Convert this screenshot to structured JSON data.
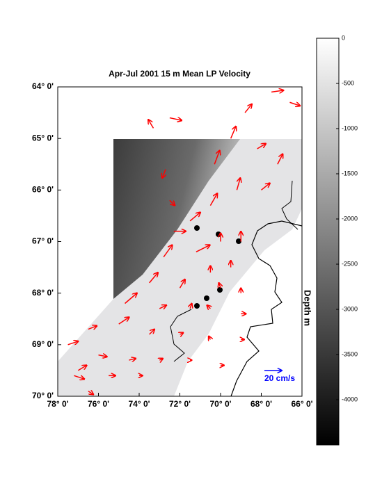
{
  "chart_data": {
    "type": "quiver",
    "title": "Apr-Jul 2001 15 m Mean LP Velocity",
    "xlim": [
      78,
      66
    ],
    "ylim": [
      64,
      70
    ],
    "xticks": [
      {
        "value": 78,
        "label": "78° 0'"
      },
      {
        "value": 76,
        "label": "76° 0'"
      },
      {
        "value": 74,
        "label": "74° 0'"
      },
      {
        "value": 72,
        "label": "72° 0'"
      },
      {
        "value": 70,
        "label": "70° 0'"
      },
      {
        "value": 68,
        "label": "68° 0'"
      },
      {
        "value": 66,
        "label": "66° 0'"
      }
    ],
    "yticks": [
      {
        "value": 64,
        "label": "64° 0'"
      },
      {
        "value": 65,
        "label": "65° 0'"
      },
      {
        "value": 66,
        "label": "66° 0'"
      },
      {
        "value": 67,
        "label": "67° 0'"
      },
      {
        "value": 68,
        "label": "68° 0'"
      },
      {
        "value": 69,
        "label": "69° 0'"
      },
      {
        "value": 70,
        "label": "70° 0'"
      }
    ],
    "color": "#ff0000",
    "x": [
      67.5,
      66.6,
      68.8,
      72.5,
      73.3,
      69.5,
      68.2,
      67.2,
      70.3,
      72.7,
      72.5,
      69.2,
      70.5,
      68.0,
      71.5,
      72.3,
      70.0,
      69.0,
      71.2,
      72.8,
      70.5,
      69.5,
      73.5,
      72.0,
      70.0,
      69.0,
      74.7,
      73.0,
      71.5,
      70.5,
      69.0,
      76.5,
      75.0,
      73.5,
      72.0,
      70.5,
      69.0,
      77.5,
      76.0,
      74.5,
      73.0,
      71.5,
      70.0,
      77.0,
      75.5,
      74.0,
      76.5,
      77.2
    ],
    "y": [
      64.1,
      64.3,
      64.5,
      64.6,
      64.8,
      65.0,
      65.2,
      65.5,
      65.5,
      65.6,
      66.2,
      66.0,
      66.3,
      66.0,
      66.6,
      66.8,
      67.0,
      67.0,
      67.2,
      67.3,
      67.6,
      67.5,
      67.8,
      67.9,
      67.9,
      68.0,
      68.2,
      68.3,
      68.3,
      68.3,
      68.4,
      68.7,
      68.6,
      68.8,
      68.8,
      68.9,
      68.9,
      69.0,
      69.2,
      69.3,
      69.3,
      69.3,
      69.4,
      69.5,
      69.6,
      69.6,
      69.9,
      69.6
    ],
    "u": [
      14,
      12,
      8,
      14,
      -6,
      6,
      10,
      6,
      6,
      -4,
      6,
      4,
      8,
      10,
      12,
      14,
      0,
      0,
      16,
      10,
      0,
      0,
      10,
      6,
      -2,
      0,
      14,
      8,
      2,
      -4,
      6,
      10,
      12,
      6,
      4,
      -2,
      4,
      12,
      10,
      8,
      4,
      2,
      4,
      10,
      8,
      4,
      6,
      12
    ],
    "v": [
      2,
      -4,
      10,
      -3,
      10,
      14,
      6,
      12,
      16,
      -10,
      -6,
      14,
      14,
      8,
      10,
      0,
      10,
      12,
      8,
      14,
      8,
      8,
      12,
      10,
      6,
      6,
      12,
      4,
      6,
      4,
      0,
      4,
      8,
      6,
      2,
      4,
      0,
      4,
      -2,
      2,
      2,
      0,
      0,
      6,
      0,
      0,
      -4,
      -4
    ],
    "scale_label": "20 cm/s",
    "scale_value": 20,
    "scale_color": "#0000ff",
    "colorbar_label": "Depth m",
    "clim": [
      -4500,
      0
    ],
    "cticks": [
      0,
      -500,
      -1000,
      -1500,
      -2000,
      -2500,
      -3000,
      -3500,
      -4000
    ]
  }
}
